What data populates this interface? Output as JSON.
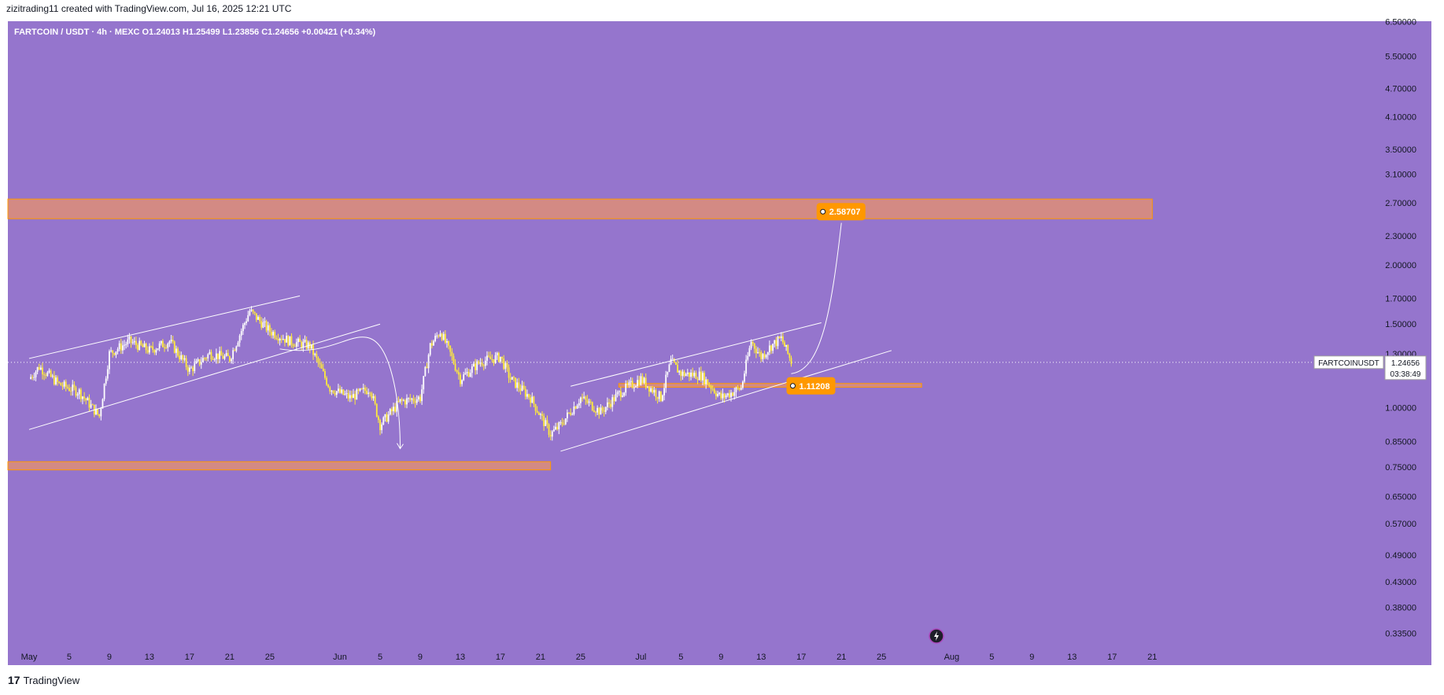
{
  "header": {
    "attribution": "zizitrading11 created with TradingView.com, Jul 16, 2025 12:21 UTC"
  },
  "symbol": {
    "line": "FARTCOIN / USDT · 4h · MEXC  O1.24013  H1.25499  L1.23856  C1.24656  +0.00421 (+0.34%)"
  },
  "footer": {
    "logo": "17",
    "brand": "TradingView"
  },
  "price_axis": {
    "ticks": [
      "6.50000",
      "5.50000",
      "4.70000",
      "4.10000",
      "3.50000",
      "3.10000",
      "2.70000",
      "2.30000",
      "2.00000",
      "1.70000",
      "1.50000",
      "1.30000",
      "1.00000",
      "0.85000",
      "0.75000",
      "0.65000",
      "0.57000",
      "0.49000",
      "0.43000",
      "0.38000",
      "0.33500"
    ],
    "last_symbol": "FARTCOINUSDT",
    "last_price": "1.24656",
    "countdown": "03:38:49"
  },
  "time_axis": {
    "labels": [
      "May",
      "5",
      "9",
      "13",
      "17",
      "21",
      "25",
      "Jun",
      "5",
      "9",
      "13",
      "17",
      "21",
      "25",
      "Jul",
      "5",
      "9",
      "13",
      "17",
      "21",
      "25",
      "Aug",
      "5",
      "9",
      "13",
      "17",
      "21"
    ]
  },
  "annotations": {
    "target_label": "2.58707",
    "support_label": "1.11208"
  },
  "colors": {
    "background": "#9575cd",
    "candle_up": "#ffffff",
    "candle_down": "#ffeb3b",
    "zone": "#e8916b",
    "badge": "#ff9800"
  },
  "chart_data": {
    "type": "candlestick",
    "symbol": "FARTCOIN / USDT",
    "interval": "4h",
    "exchange": "MEXC",
    "ohlc_last": {
      "open": 1.24013,
      "high": 1.25499,
      "low": 1.23856,
      "close": 1.24656,
      "change": 0.00421,
      "change_pct": 0.34
    },
    "y_scale": "log",
    "ylim": [
      0.31,
      7.0
    ],
    "x_range": [
      "2025-05-01",
      "2025-08-22"
    ],
    "close_path": [
      {
        "date": "2025-05-01",
        "price": 1.15
      },
      {
        "date": "2025-05-02",
        "price": 1.22
      },
      {
        "date": "2025-05-04",
        "price": 1.12
      },
      {
        "date": "2025-05-06",
        "price": 1.08
      },
      {
        "date": "2025-05-08",
        "price": 0.96
      },
      {
        "date": "2025-05-09",
        "price": 1.3
      },
      {
        "date": "2025-05-11",
        "price": 1.38
      },
      {
        "date": "2025-05-13",
        "price": 1.32
      },
      {
        "date": "2025-05-15",
        "price": 1.38
      },
      {
        "date": "2025-05-17",
        "price": 1.2
      },
      {
        "date": "2025-05-19",
        "price": 1.3
      },
      {
        "date": "2025-05-21",
        "price": 1.27
      },
      {
        "date": "2025-05-23",
        "price": 1.6
      },
      {
        "date": "2025-05-25",
        "price": 1.45
      },
      {
        "date": "2025-05-27",
        "price": 1.38
      },
      {
        "date": "2025-05-29",
        "price": 1.35
      },
      {
        "date": "2025-05-31",
        "price": 1.1
      },
      {
        "date": "2025-06-02",
        "price": 1.05
      },
      {
        "date": "2025-06-04",
        "price": 1.1
      },
      {
        "date": "2025-06-05",
        "price": 0.92
      },
      {
        "date": "2025-06-07",
        "price": 1.03
      },
      {
        "date": "2025-06-09",
        "price": 1.05
      },
      {
        "date": "2025-06-10",
        "price": 1.35
      },
      {
        "date": "2025-06-11",
        "price": 1.45
      },
      {
        "date": "2025-06-12",
        "price": 1.3
      },
      {
        "date": "2025-06-13",
        "price": 1.15
      },
      {
        "date": "2025-06-15",
        "price": 1.25
      },
      {
        "date": "2025-06-17",
        "price": 1.28
      },
      {
        "date": "2025-06-18",
        "price": 1.15
      },
      {
        "date": "2025-06-20",
        "price": 1.05
      },
      {
        "date": "2025-06-22",
        "price": 0.88
      },
      {
        "date": "2025-06-23",
        "price": 0.92
      },
      {
        "date": "2025-06-25",
        "price": 1.05
      },
      {
        "date": "2025-06-27",
        "price": 0.98
      },
      {
        "date": "2025-06-29",
        "price": 1.08
      },
      {
        "date": "2025-07-01",
        "price": 1.15
      },
      {
        "date": "2025-07-03",
        "price": 1.05
      },
      {
        "date": "2025-07-04",
        "price": 1.25
      },
      {
        "date": "2025-07-05",
        "price": 1.18
      },
      {
        "date": "2025-07-07",
        "price": 1.17
      },
      {
        "date": "2025-07-09",
        "price": 1.05
      },
      {
        "date": "2025-07-11",
        "price": 1.1
      },
      {
        "date": "2025-07-12",
        "price": 1.38
      },
      {
        "date": "2025-07-13",
        "price": 1.28
      },
      {
        "date": "2025-07-14",
        "price": 1.35
      },
      {
        "date": "2025-07-15",
        "price": 1.4
      },
      {
        "date": "2025-07-16",
        "price": 1.25
      }
    ],
    "zones": [
      {
        "from_date": "2025-05-01",
        "to_date": "2025-08-21",
        "low": 2.5,
        "high": 2.75
      },
      {
        "from_date": "2025-07-01",
        "to_date": "2025-07-29",
        "low": 1.105,
        "high": 1.125
      },
      {
        "from_date": "2025-05-01",
        "to_date": "2025-06-22",
        "low": 0.74,
        "high": 0.77
      }
    ],
    "trendlines": [
      {
        "from": {
          "date": "2025-05-01",
          "price": 1.27
        },
        "to": {
          "date": "2025-05-28",
          "price": 1.72
        }
      },
      {
        "from": {
          "date": "2025-05-01",
          "price": 0.9
        },
        "to": {
          "date": "2025-06-05",
          "price": 1.5
        }
      },
      {
        "from": {
          "date": "2025-06-24",
          "price": 1.11
        },
        "to": {
          "date": "2025-07-19",
          "price": 1.51
        }
      },
      {
        "from": {
          "date": "2025-06-23",
          "price": 0.81
        },
        "to": {
          "date": "2025-07-26",
          "price": 1.32
        }
      }
    ],
    "price_labels": [
      {
        "date": "2025-07-19",
        "price": 2.58707
      },
      {
        "date": "2025-07-16",
        "price": 1.11208
      }
    ],
    "last_price": 1.24656
  }
}
